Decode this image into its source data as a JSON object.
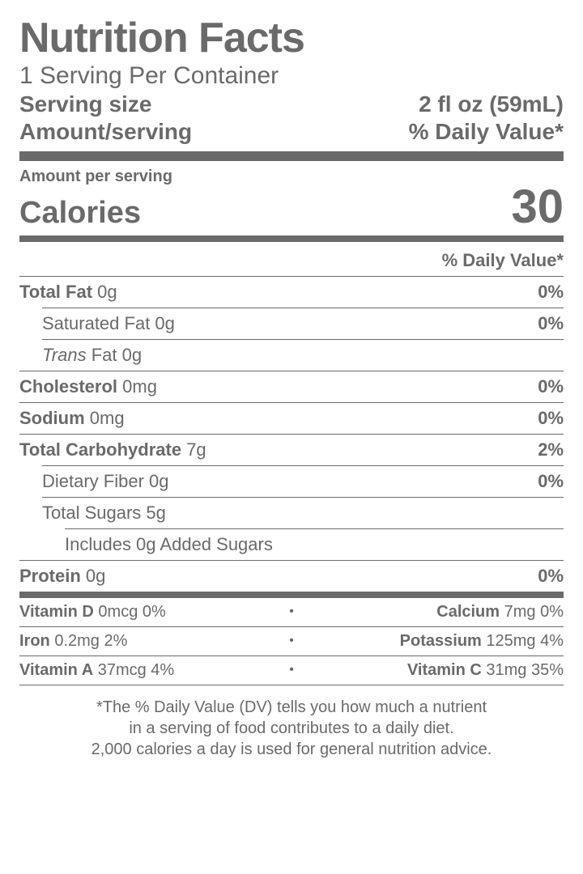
{
  "title": "Nutrition Facts",
  "servings_per_container": "1 Serving Per Container",
  "serving_size_label": "Serving size",
  "serving_size_value": "2 fl oz (59mL)",
  "amount_serving_label": "Amount/serving",
  "daily_value_header": "% Daily Value*",
  "aps": "Amount per serving",
  "calories_label": "Calories",
  "calories_value": "30",
  "dv_header2": "% Daily Value*",
  "nutrients": {
    "fat_label": "Total Fat",
    "fat_amt": "0g",
    "fat_dv": "0%",
    "satfat_label": "Saturated Fat 0g",
    "satfat_dv": "0%",
    "trans_prefix": "Trans",
    "trans_rest": " Fat 0g",
    "chol_label": "Cholesterol",
    "chol_amt": "0mg",
    "chol_dv": "0%",
    "sodium_label": "Sodium",
    "sodium_amt": "0mg",
    "sodium_dv": "0%",
    "carb_label": "Total Carbohydrate",
    "carb_amt": "7g",
    "carb_dv": "2%",
    "fiber_label": "Dietary Fiber 0g",
    "fiber_dv": "0%",
    "sugars_label": "Total Sugars 5g",
    "added_label": "Includes 0g Added Sugars",
    "protein_label": "Protein",
    "protein_amt": "0g",
    "protein_dv": "0%"
  },
  "vitamins": [
    {
      "left_name": "Vitamin D",
      "left_val": "0mcg 0%",
      "right_name": "Calcium",
      "right_val": "7mg 0%"
    },
    {
      "left_name": "Iron",
      "left_val": "0.2mg 2%",
      "right_name": "Potassium",
      "right_val": "125mg 4%"
    },
    {
      "left_name": "Vitamin A",
      "left_val": "37mcg 4%",
      "right_name": "Vitamin C",
      "right_val": "31mg 35%"
    }
  ],
  "footnote_l1": "*The % Daily Value (DV) tells you how much a nutrient",
  "footnote_l2": "in a serving of food contributes to a daily diet.",
  "footnote_l3": "2,000 calories a day is used for general nutrition advice.",
  "colors": {
    "text": "#6a6a6a",
    "bg": "#ffffff"
  }
}
